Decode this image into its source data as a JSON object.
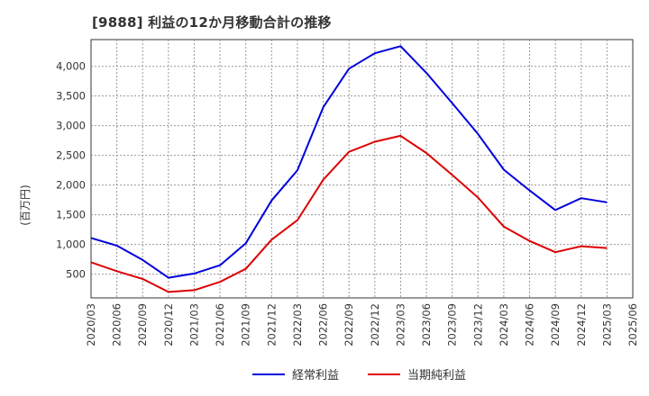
{
  "chart_data": {
    "type": "line",
    "title": "[9888]  利益の12か月移動合計の推移",
    "ylabel": "(百万円)",
    "xlabel": "",
    "ylim": [
      100,
      4450
    ],
    "yticks": [
      500,
      1000,
      1500,
      2000,
      2500,
      3000,
      3500,
      4000
    ],
    "ytick_labels": [
      "500",
      "1,000",
      "1,500",
      "2,000",
      "2,500",
      "3,000",
      "3,500",
      "4,000"
    ],
    "categories": [
      "2020/03",
      "2020/06",
      "2020/09",
      "2020/12",
      "2021/03",
      "2021/06",
      "2021/09",
      "2021/12",
      "2022/03",
      "2022/06",
      "2022/09",
      "2022/12",
      "2023/03",
      "2023/06",
      "2023/09",
      "2023/12",
      "2024/03",
      "2024/06",
      "2024/09",
      "2024/12",
      "2025/03",
      "2025/06"
    ],
    "grid": true,
    "legend_position": "bottom",
    "series": [
      {
        "name": "経常利益",
        "color": "#0000dd",
        "values": [
          1110,
          980,
          740,
          440,
          510,
          650,
          1020,
          1740,
          2250,
          3310,
          3960,
          4220,
          4340,
          3890,
          3380,
          2860,
          2260,
          1910,
          1580,
          1780,
          1710,
          null
        ]
      },
      {
        "name": "当期純利益",
        "color": "#dd0000",
        "values": [
          700,
          550,
          420,
          200,
          230,
          370,
          590,
          1080,
          1410,
          2090,
          2560,
          2730,
          2830,
          2540,
          2170,
          1790,
          1300,
          1060,
          870,
          970,
          940,
          null
        ]
      }
    ]
  }
}
